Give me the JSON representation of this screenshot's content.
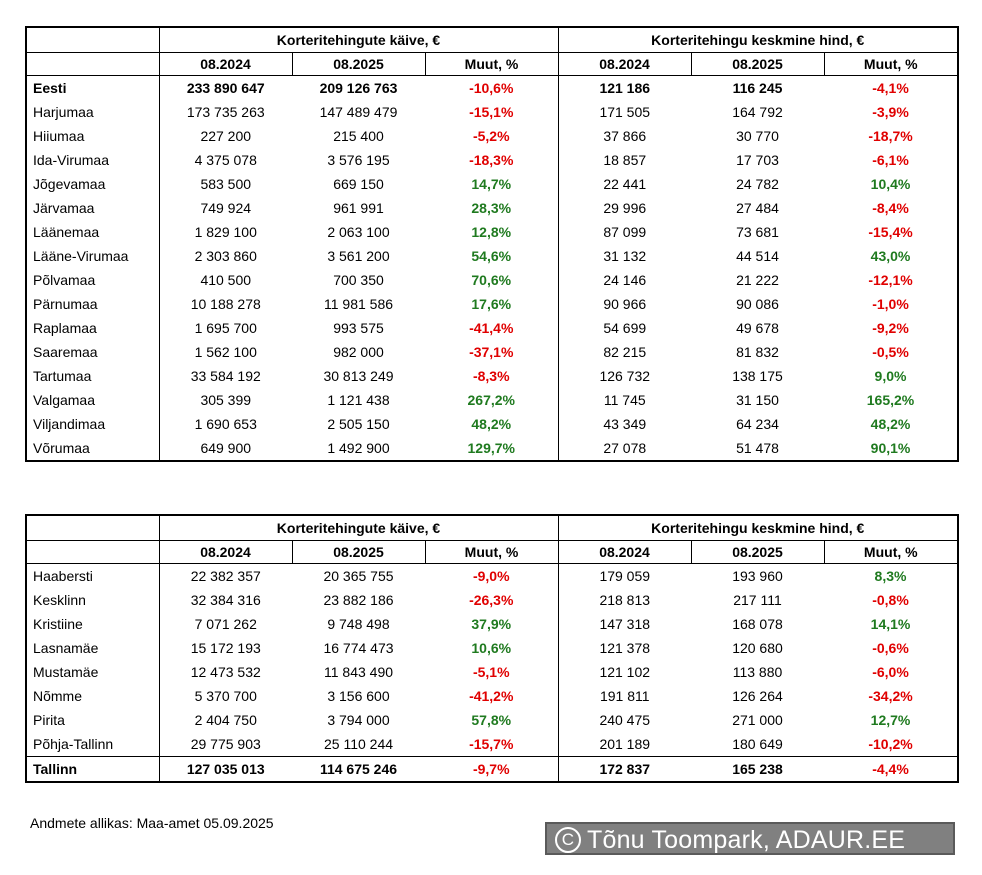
{
  "table1": {
    "group1_title": "Korteritehingute käive, €",
    "group2_title": "Korteritehingu keskmine hind, €",
    "subheaders": [
      "08.2024",
      "08.2025",
      "Muut, %",
      "08.2024",
      "08.2025",
      "Muut, %"
    ],
    "rows": [
      {
        "name": "Eesti",
        "bold": true,
        "v1": "233 890 647",
        "v2": "209 126 763",
        "c1": "-10,6%",
        "p1": "121 186",
        "p2": "116 245",
        "c2": "-4,1%"
      },
      {
        "name": "Harjumaa",
        "v1": "173 735 263",
        "v2": "147 489 479",
        "c1": "-15,1%",
        "p1": "171 505",
        "p2": "164 792",
        "c2": "-3,9%"
      },
      {
        "name": "Hiiumaa",
        "v1": "227 200",
        "v2": "215 400",
        "c1": "-5,2%",
        "p1": "37 866",
        "p2": "30 770",
        "c2": "-18,7%"
      },
      {
        "name": "Ida-Virumaa",
        "v1": "4 375 078",
        "v2": "3 576 195",
        "c1": "-18,3%",
        "p1": "18 857",
        "p2": "17 703",
        "c2": "-6,1%"
      },
      {
        "name": "Jõgevamaa",
        "v1": "583 500",
        "v2": "669 150",
        "c1": "14,7%",
        "p1": "22 441",
        "p2": "24 782",
        "c2": "10,4%"
      },
      {
        "name": "Järvamaa",
        "v1": "749 924",
        "v2": "961 991",
        "c1": "28,3%",
        "p1": "29 996",
        "p2": "27 484",
        "c2": "-8,4%"
      },
      {
        "name": "Läänemaa",
        "v1": "1 829 100",
        "v2": "2 063 100",
        "c1": "12,8%",
        "p1": "87 099",
        "p2": "73 681",
        "c2": "-15,4%"
      },
      {
        "name": "Lääne-Virumaa",
        "v1": "2 303 860",
        "v2": "3 561 200",
        "c1": "54,6%",
        "p1": "31 132",
        "p2": "44 514",
        "c2": "43,0%"
      },
      {
        "name": "Põlvamaa",
        "v1": "410 500",
        "v2": "700 350",
        "c1": "70,6%",
        "p1": "24 146",
        "p2": "21 222",
        "c2": "-12,1%"
      },
      {
        "name": "Pärnumaa",
        "v1": "10 188 278",
        "v2": "11 981 586",
        "c1": "17,6%",
        "p1": "90 966",
        "p2": "90 086",
        "c2": "-1,0%"
      },
      {
        "name": "Raplamaa",
        "v1": "1 695 700",
        "v2": "993 575",
        "c1": "-41,4%",
        "p1": "54 699",
        "p2": "49 678",
        "c2": "-9,2%"
      },
      {
        "name": "Saaremaa",
        "v1": "1 562 100",
        "v2": "982 000",
        "c1": "-37,1%",
        "p1": "82 215",
        "p2": "81 832",
        "c2": "-0,5%"
      },
      {
        "name": "Tartumaa",
        "v1": "33 584 192",
        "v2": "30 813 249",
        "c1": "-8,3%",
        "p1": "126 732",
        "p2": "138 175",
        "c2": "9,0%"
      },
      {
        "name": "Valgamaa",
        "v1": "305 399",
        "v2": "1 121 438",
        "c1": "267,2%",
        "p1": "11 745",
        "p2": "31 150",
        "c2": "165,2%"
      },
      {
        "name": "Viljandimaa",
        "v1": "1 690 653",
        "v2": "2 505 150",
        "c1": "48,2%",
        "p1": "43 349",
        "p2": "64 234",
        "c2": "48,2%"
      },
      {
        "name": "Võrumaa",
        "v1": "649 900",
        "v2": "1 492 900",
        "c1": "129,7%",
        "p1": "27 078",
        "p2": "51 478",
        "c2": "90,1%"
      }
    ]
  },
  "table2": {
    "group1_title": "Korteritehingute käive, €",
    "group2_title": "Korteritehingu keskmine hind, €",
    "subheaders": [
      "08.2024",
      "08.2025",
      "Muut, %",
      "08.2024",
      "08.2025",
      "Muut, %"
    ],
    "rows": [
      {
        "name": "Haabersti",
        "v1": "22 382 357",
        "v2": "20 365 755",
        "c1": "-9,0%",
        "p1": "179 059",
        "p2": "193 960",
        "c2": "8,3%"
      },
      {
        "name": "Kesklinn",
        "v1": "32 384 316",
        "v2": "23 882 186",
        "c1": "-26,3%",
        "p1": "218 813",
        "p2": "217 111",
        "c2": "-0,8%"
      },
      {
        "name": "Kristiine",
        "v1": "7 071 262",
        "v2": "9 748 498",
        "c1": "37,9%",
        "p1": "147 318",
        "p2": "168 078",
        "c2": "14,1%"
      },
      {
        "name": "Lasnamäe",
        "v1": "15 172 193",
        "v2": "16 774 473",
        "c1": "10,6%",
        "p1": "121 378",
        "p2": "120 680",
        "c2": "-0,6%"
      },
      {
        "name": "Mustamäe",
        "v1": "12 473 532",
        "v2": "11 843 490",
        "c1": "-5,1%",
        "p1": "121 102",
        "p2": "113 880",
        "c2": "-6,0%"
      },
      {
        "name": "Nõmme",
        "v1": "5 370 700",
        "v2": "3 156 600",
        "c1": "-41,2%",
        "p1": "191 811",
        "p2": "126 264",
        "c2": "-34,2%"
      },
      {
        "name": "Pirita",
        "v1": "2 404 750",
        "v2": "3 794 000",
        "c1": "57,8%",
        "p1": "240 475",
        "p2": "271 000",
        "c2": "12,7%"
      },
      {
        "name": "Põhja-Tallinn",
        "v1": "29 775 903",
        "v2": "25 110 244",
        "c1": "-15,7%",
        "p1": "201 189",
        "p2": "180 649",
        "c2": "-10,2%"
      },
      {
        "name": "Tallinn",
        "bold": true,
        "total": true,
        "v1": "127 035 013",
        "v2": "114 675 246",
        "c1": "-9,7%",
        "p1": "172 837",
        "p2": "165 238",
        "c2": "-4,4%"
      }
    ]
  },
  "source": "Andmete allikas: Maa-amet 05.09.2025",
  "credit": {
    "symbol": "C",
    "text": "Tõnu Toompark, ADAUR.EE"
  },
  "colors": {
    "positive": "#1f7a1f",
    "negative": "#e00000",
    "credit_bg": "#808080"
  }
}
